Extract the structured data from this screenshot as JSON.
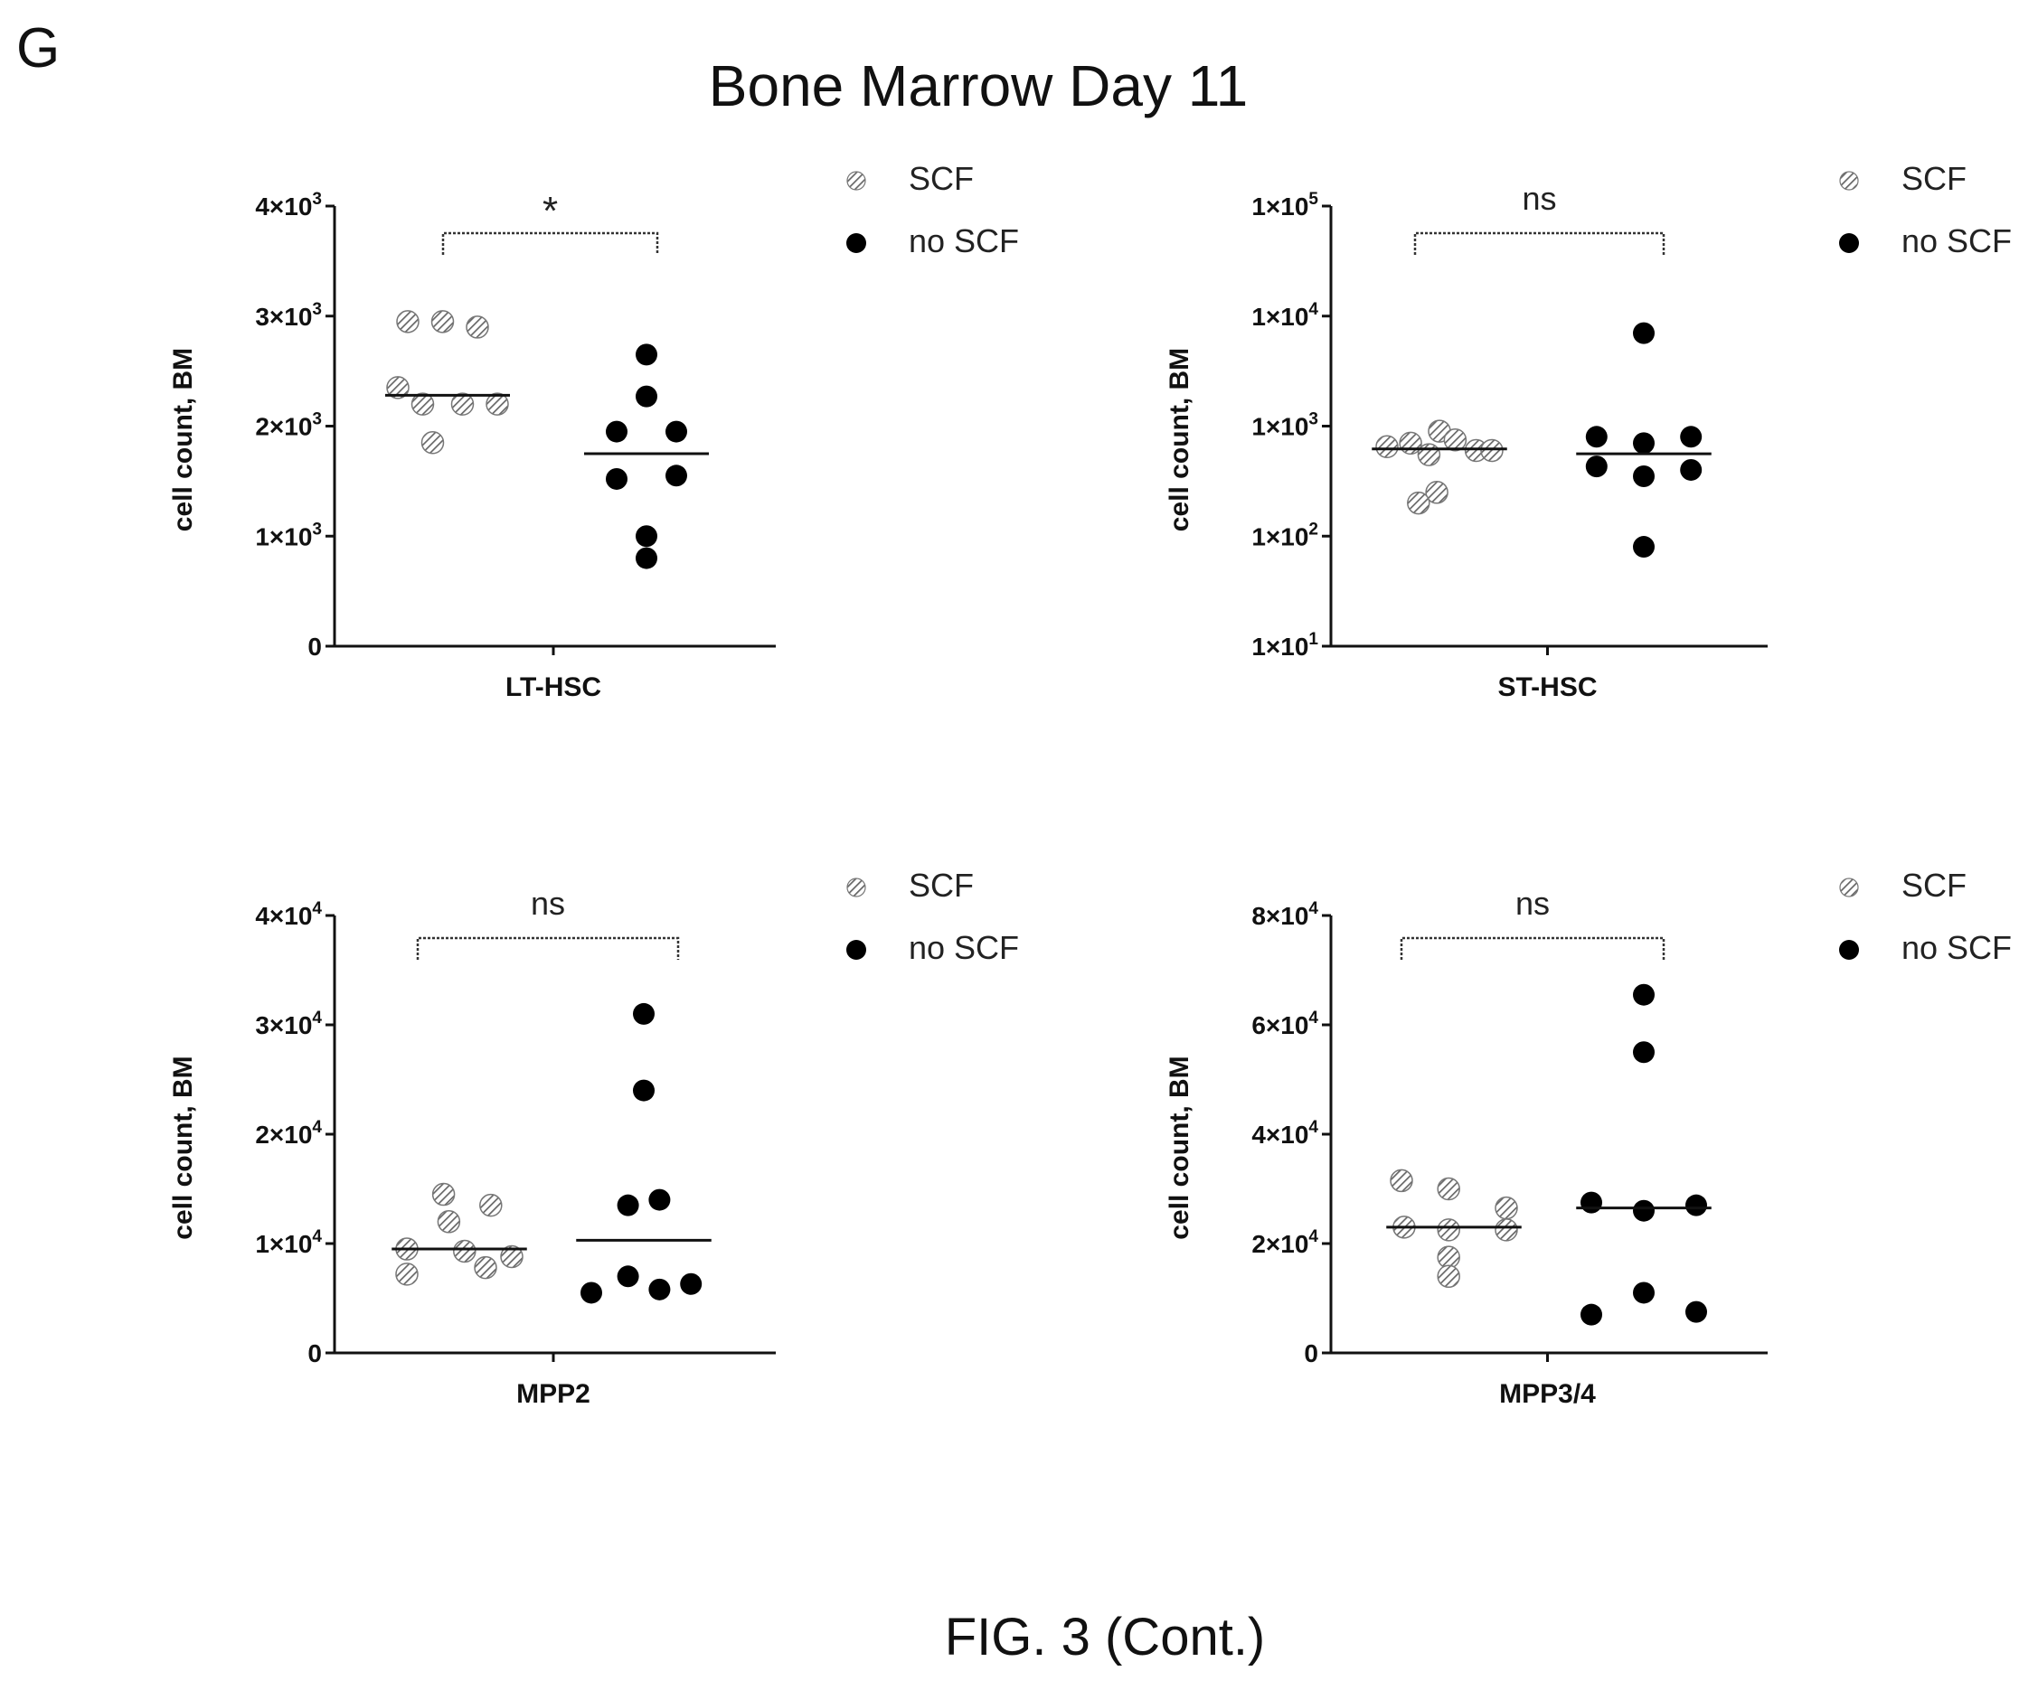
{
  "panel_letter": "G",
  "figure_title": "Bone Marrow Day 11",
  "caption": "FIG. 3 (Cont.)",
  "colors": {
    "scf": "#777777",
    "no_scf": "#000000",
    "axis": "#111111"
  },
  "chart_data": [
    {
      "type": "scatter",
      "id": "lt",
      "xlabel": "LT-HSC",
      "ylabel": "cell count, BM",
      "scale": "linear",
      "ylim": [
        0,
        4000
      ],
      "yticks": [
        0,
        1000,
        2000,
        3000,
        4000
      ],
      "ytick_labels": [
        {
          "m": "0",
          "e": ""
        },
        {
          "m": "1×10",
          "e": "3"
        },
        {
          "m": "2×10",
          "e": "3"
        },
        {
          "m": "3×10",
          "e": "3"
        },
        {
          "m": "4×10",
          "e": "3"
        }
      ],
      "significance": "*",
      "legend": [
        "SCF",
        "no SCF"
      ],
      "legend_placement": "top-right",
      "series": [
        {
          "name": "SCF",
          "marker": "hatched",
          "values": [
            2950,
            2950,
            2900,
            2350,
            2200,
            2200,
            2200,
            1850
          ],
          "jitter": [
            -0.8,
            -0.1,
            0.6,
            -1.0,
            -0.5,
            0.3,
            1.0,
            -0.3
          ],
          "median": 2280
        },
        {
          "name": "no SCF",
          "marker": "filled",
          "values": [
            2650,
            2270,
            1950,
            1950,
            1520,
            1550,
            1000,
            800
          ],
          "jitter": [
            0,
            0,
            -0.6,
            0.6,
            -0.6,
            0.6,
            0,
            0
          ],
          "median": 1750
        }
      ]
    },
    {
      "type": "scatter",
      "id": "st",
      "xlabel": "ST-HSC",
      "ylabel": "cell count, BM",
      "scale": "log",
      "ylim": [
        10,
        100000
      ],
      "yticks": [
        10,
        100,
        1000,
        10000,
        100000
      ],
      "ytick_labels": [
        {
          "m": "1×10",
          "e": "1"
        },
        {
          "m": "1×10",
          "e": "2"
        },
        {
          "m": "1×10",
          "e": "3"
        },
        {
          "m": "1×10",
          "e": "4"
        },
        {
          "m": "1×10",
          "e": "5"
        }
      ],
      "significance": "ns",
      "legend": [
        "SCF",
        "no SCF"
      ],
      "legend_placement": "top-right",
      "series": [
        {
          "name": "SCF",
          "marker": "hatched",
          "values": [
            650,
            700,
            900,
            750,
            550,
            600,
            600,
            250,
            200
          ],
          "jitter": [
            -1.0,
            -0.55,
            0,
            0.3,
            -0.2,
            0.7,
            1.0,
            -0.05,
            -0.4
          ],
          "median": 620
        },
        {
          "name": "no SCF",
          "marker": "filled",
          "values": [
            7000,
            800,
            700,
            800,
            430,
            350,
            400,
            80
          ],
          "jitter": [
            0,
            -0.9,
            0,
            0.9,
            -0.9,
            0,
            0.9,
            0
          ],
          "median": 560
        }
      ]
    },
    {
      "type": "scatter",
      "id": "mpp2",
      "xlabel": "MPP2",
      "ylabel": "cell count, BM",
      "scale": "linear",
      "ylim": [
        0,
        40000
      ],
      "yticks": [
        0,
        10000,
        20000,
        30000,
        40000
      ],
      "ytick_labels": [
        {
          "m": "0",
          "e": ""
        },
        {
          "m": "1×10",
          "e": "4"
        },
        {
          "m": "2×10",
          "e": "4"
        },
        {
          "m": "3×10",
          "e": "4"
        },
        {
          "m": "4×10",
          "e": "4"
        }
      ],
      "significance": "ns",
      "legend": [
        "SCF",
        "no SCF"
      ],
      "legend_placement": "top-right",
      "series": [
        {
          "name": "SCF",
          "marker": "hatched",
          "values": [
            14500,
            13500,
            12000,
            9500,
            9300,
            7800,
            8800,
            7200
          ],
          "jitter": [
            -0.3,
            0.6,
            -0.2,
            -1.0,
            0.1,
            0.5,
            1.0,
            -1.0
          ],
          "median": 9500
        },
        {
          "name": "no SCF",
          "marker": "filled",
          "values": [
            31000,
            24000,
            13500,
            14000,
            7000,
            5500,
            5800,
            6300
          ],
          "jitter": [
            0,
            0,
            -0.3,
            0.3,
            -0.3,
            -1.0,
            0.3,
            0.9
          ],
          "median": 10300
        }
      ]
    },
    {
      "type": "scatter",
      "id": "mpp34",
      "xlabel": "MPP3/4",
      "ylabel": "cell count, BM",
      "scale": "linear",
      "ylim": [
        0,
        80000
      ],
      "yticks": [
        0,
        20000,
        40000,
        60000,
        80000
      ],
      "ytick_labels": [
        {
          "m": "0",
          "e": ""
        },
        {
          "m": "2×10",
          "e": "4"
        },
        {
          "m": "4×10",
          "e": "4"
        },
        {
          "m": "6×10",
          "e": "4"
        },
        {
          "m": "8×10",
          "e": "4"
        }
      ],
      "significance": "ns",
      "legend": [
        "SCF",
        "no SCF"
      ],
      "legend_placement": "top-right",
      "series": [
        {
          "name": "SCF",
          "marker": "hatched",
          "values": [
            31500,
            30000,
            26500,
            23000,
            22500,
            22500,
            17500,
            14000
          ],
          "jitter": [
            -1.0,
            -0.1,
            1.0,
            -0.95,
            -0.1,
            1.0,
            -0.1,
            -0.1
          ],
          "median": 23000
        },
        {
          "name": "no SCF",
          "marker": "filled",
          "values": [
            65500,
            55000,
            27500,
            26000,
            27000,
            11000,
            7000,
            7500
          ],
          "jitter": [
            0,
            0,
            -1.0,
            0,
            1.0,
            0,
            -1.0,
            1.0
          ],
          "median": 26500
        }
      ]
    }
  ]
}
